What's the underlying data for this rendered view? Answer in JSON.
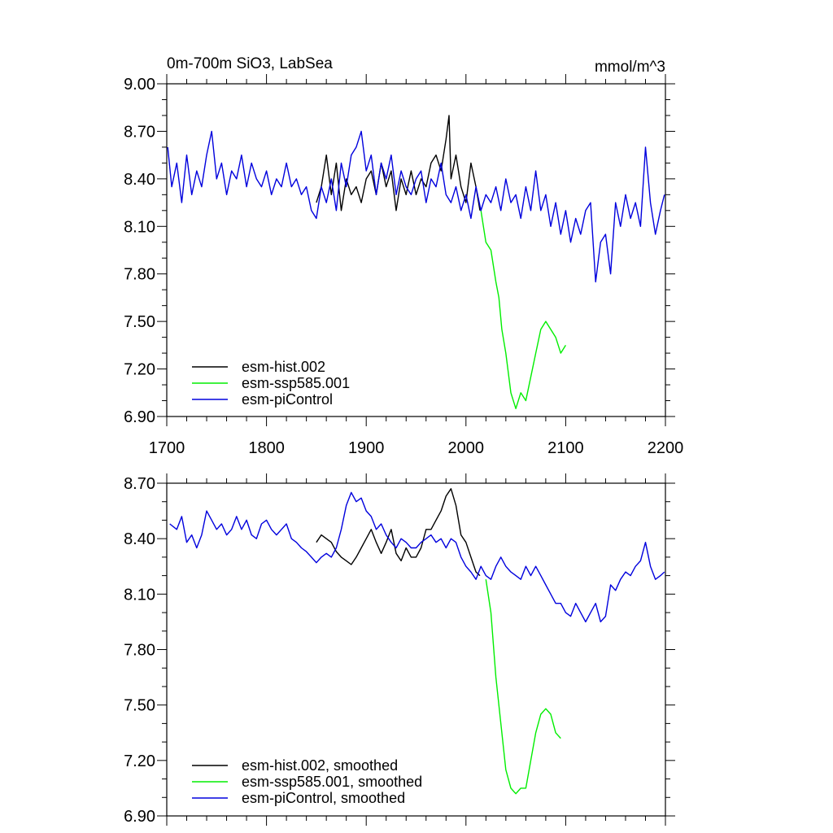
{
  "colors": {
    "hist": "#000000",
    "ssp": "#00ee00",
    "ctrl": "#0000dd"
  },
  "chart_data": [
    {
      "type": "line",
      "title": "0m-700m SiO3, LabSea",
      "units": "mmol/m^3",
      "xlim": [
        1700,
        2200
      ],
      "ylim": [
        6.9,
        9.0
      ],
      "xticks": [
        "1700",
        "1800",
        "1900",
        "2000",
        "2100",
        "2200"
      ],
      "yticks": [
        "9.00",
        "8.70",
        "8.40",
        "8.10",
        "7.80",
        "7.50",
        "7.20",
        "6.90"
      ],
      "legend": [
        "esm-hist.002",
        "esm-ssp585.001",
        "esm-piControl"
      ],
      "legend_position": "bottom-left",
      "series": [
        {
          "name": "esm-hist.002",
          "color_key": "hist",
          "x": [
            1850,
            1855,
            1860,
            1865,
            1870,
            1875,
            1880,
            1885,
            1890,
            1895,
            1900,
            1905,
            1910,
            1915,
            1920,
            1925,
            1930,
            1935,
            1940,
            1945,
            1950,
            1955,
            1960,
            1965,
            1970,
            1975,
            1980,
            1983,
            1985,
            1990,
            1995,
            2000,
            2005,
            2010,
            2014
          ],
          "y": [
            8.25,
            8.35,
            8.55,
            8.3,
            8.5,
            8.2,
            8.4,
            8.3,
            8.35,
            8.25,
            8.4,
            8.45,
            8.3,
            8.5,
            8.35,
            8.45,
            8.2,
            8.4,
            8.3,
            8.45,
            8.3,
            8.4,
            8.35,
            8.5,
            8.55,
            8.45,
            8.65,
            8.8,
            8.4,
            8.55,
            8.35,
            8.25,
            8.5,
            8.35,
            8.2
          ]
        },
        {
          "name": "esm-ssp585.001",
          "color_key": "ssp",
          "x": [
            2015,
            2020,
            2025,
            2030,
            2033,
            2036,
            2040,
            2045,
            2050,
            2055,
            2060,
            2065,
            2070,
            2075,
            2080,
            2085,
            2090,
            2095,
            2100
          ],
          "y": [
            8.2,
            8.0,
            7.95,
            7.75,
            7.65,
            7.45,
            7.3,
            7.05,
            6.95,
            7.05,
            7.0,
            7.15,
            7.3,
            7.45,
            7.5,
            7.45,
            7.4,
            7.3,
            7.35
          ]
        },
        {
          "name": "esm-piControl",
          "color_key": "ctrl",
          "x": [
            1701,
            1705,
            1710,
            1715,
            1720,
            1725,
            1730,
            1735,
            1740,
            1745,
            1750,
            1755,
            1760,
            1765,
            1770,
            1775,
            1780,
            1785,
            1790,
            1795,
            1800,
            1805,
            1810,
            1815,
            1820,
            1825,
            1830,
            1835,
            1840,
            1845,
            1850,
            1855,
            1860,
            1865,
            1870,
            1875,
            1880,
            1885,
            1890,
            1895,
            1900,
            1905,
            1910,
            1915,
            1920,
            1925,
            1930,
            1935,
            1940,
            1945,
            1950,
            1955,
            1960,
            1965,
            1970,
            1975,
            1980,
            1985,
            1990,
            1995,
            2000,
            2005,
            2010,
            2015,
            2020,
            2025,
            2030,
            2035,
            2040,
            2045,
            2050,
            2055,
            2060,
            2065,
            2070,
            2075,
            2080,
            2085,
            2090,
            2095,
            2100,
            2105,
            2110,
            2115,
            2120,
            2125,
            2130,
            2135,
            2140,
            2145,
            2150,
            2155,
            2160,
            2165,
            2170,
            2175,
            2180,
            2185,
            2190,
            2195,
            2199
          ],
          "y": [
            8.6,
            8.35,
            8.5,
            8.25,
            8.55,
            8.3,
            8.45,
            8.35,
            8.55,
            8.7,
            8.4,
            8.5,
            8.3,
            8.45,
            8.4,
            8.55,
            8.35,
            8.5,
            8.4,
            8.35,
            8.45,
            8.3,
            8.4,
            8.35,
            8.5,
            8.35,
            8.4,
            8.3,
            8.35,
            8.2,
            8.15,
            8.35,
            8.25,
            8.4,
            8.2,
            8.5,
            8.35,
            8.55,
            8.6,
            8.7,
            8.45,
            8.55,
            8.3,
            8.5,
            8.4,
            8.55,
            8.3,
            8.45,
            8.35,
            8.3,
            8.4,
            8.45,
            8.25,
            8.4,
            8.35,
            8.5,
            8.3,
            8.25,
            8.35,
            8.2,
            8.3,
            8.15,
            8.35,
            8.2,
            8.3,
            8.25,
            8.35,
            8.2,
            8.4,
            8.25,
            8.3,
            8.15,
            8.35,
            8.2,
            8.45,
            8.2,
            8.3,
            8.1,
            8.25,
            8.05,
            8.2,
            8.0,
            8.15,
            8.05,
            8.2,
            8.25,
            7.75,
            8.0,
            8.05,
            7.8,
            8.25,
            8.1,
            8.3,
            8.15,
            8.25,
            8.1,
            8.6,
            8.25,
            8.05,
            8.2,
            8.3
          ]
        }
      ]
    },
    {
      "type": "line",
      "title": "",
      "xlim": [
        1700,
        2200
      ],
      "ylim": [
        6.9,
        8.7
      ],
      "yticks": [
        "8.70",
        "8.40",
        "8.10",
        "7.80",
        "7.50",
        "7.20",
        "6.90"
      ],
      "legend": [
        "esm-hist.002, smoothed",
        "esm-ssp585.001, smoothed",
        "esm-piControl, smoothed"
      ],
      "legend_position": "bottom-left",
      "series": [
        {
          "name": "esm-hist.002, smoothed",
          "color_key": "hist",
          "x": [
            1850,
            1855,
            1860,
            1865,
            1870,
            1875,
            1880,
            1885,
            1890,
            1895,
            1900,
            1905,
            1910,
            1915,
            1920,
            1925,
            1930,
            1935,
            1940,
            1945,
            1950,
            1955,
            1960,
            1965,
            1970,
            1975,
            1980,
            1985,
            1990,
            1995,
            2000,
            2005,
            2010,
            2014
          ],
          "y": [
            8.38,
            8.42,
            8.4,
            8.38,
            8.33,
            8.3,
            8.28,
            8.26,
            8.3,
            8.35,
            8.4,
            8.45,
            8.38,
            8.32,
            8.38,
            8.45,
            8.32,
            8.28,
            8.35,
            8.3,
            8.3,
            8.35,
            8.45,
            8.45,
            8.5,
            8.55,
            8.63,
            8.67,
            8.58,
            8.42,
            8.38,
            8.3,
            8.22,
            8.2
          ]
        },
        {
          "name": "esm-ssp585.001, smoothed",
          "color_key": "ssp",
          "x": [
            2020,
            2025,
            2030,
            2035,
            2040,
            2045,
            2050,
            2055,
            2060,
            2065,
            2070,
            2075,
            2080,
            2085,
            2090,
            2095
          ],
          "y": [
            8.18,
            8.0,
            7.65,
            7.4,
            7.15,
            7.05,
            7.02,
            7.05,
            7.05,
            7.2,
            7.35,
            7.45,
            7.48,
            7.45,
            7.35,
            7.32
          ]
        },
        {
          "name": "esm-piControl, smoothed",
          "color_key": "ctrl",
          "x": [
            1703,
            1710,
            1715,
            1720,
            1725,
            1730,
            1735,
            1740,
            1745,
            1750,
            1755,
            1760,
            1765,
            1770,
            1775,
            1780,
            1785,
            1790,
            1795,
            1800,
            1805,
            1810,
            1815,
            1820,
            1825,
            1830,
            1835,
            1840,
            1845,
            1850,
            1855,
            1860,
            1865,
            1870,
            1875,
            1880,
            1885,
            1890,
            1895,
            1900,
            1905,
            1910,
            1915,
            1920,
            1925,
            1930,
            1935,
            1940,
            1945,
            1950,
            1955,
            1960,
            1965,
            1970,
            1975,
            1980,
            1985,
            1990,
            1995,
            2000,
            2005,
            2010,
            2015,
            2020,
            2025,
            2030,
            2035,
            2040,
            2045,
            2050,
            2055,
            2060,
            2065,
            2070,
            2075,
            2080,
            2085,
            2090,
            2095,
            2100,
            2105,
            2110,
            2115,
            2120,
            2125,
            2130,
            2135,
            2140,
            2145,
            2150,
            2155,
            2160,
            2165,
            2170,
            2175,
            2180,
            2185,
            2190,
            2195,
            2199
          ],
          "y": [
            8.48,
            8.45,
            8.52,
            8.38,
            8.42,
            8.35,
            8.42,
            8.55,
            8.5,
            8.45,
            8.48,
            8.42,
            8.45,
            8.52,
            8.45,
            8.5,
            8.42,
            8.4,
            8.48,
            8.5,
            8.45,
            8.42,
            8.45,
            8.48,
            8.4,
            8.38,
            8.35,
            8.33,
            8.3,
            8.27,
            8.3,
            8.32,
            8.3,
            8.35,
            8.45,
            8.58,
            8.65,
            8.6,
            8.62,
            8.55,
            8.52,
            8.45,
            8.48,
            8.42,
            8.38,
            8.35,
            8.4,
            8.38,
            8.35,
            8.35,
            8.38,
            8.4,
            8.42,
            8.38,
            8.4,
            8.35,
            8.4,
            8.38,
            8.3,
            8.25,
            8.22,
            8.18,
            8.25,
            8.2,
            8.18,
            8.25,
            8.3,
            8.25,
            8.22,
            8.2,
            8.18,
            8.25,
            8.2,
            8.25,
            8.2,
            8.15,
            8.1,
            8.05,
            8.05,
            8.0,
            7.98,
            8.05,
            8.0,
            7.95,
            8.0,
            8.05,
            7.95,
            7.98,
            8.15,
            8.12,
            8.18,
            8.22,
            8.2,
            8.25,
            8.28,
            8.38,
            8.25,
            8.18,
            8.2,
            8.22
          ]
        }
      ]
    }
  ]
}
